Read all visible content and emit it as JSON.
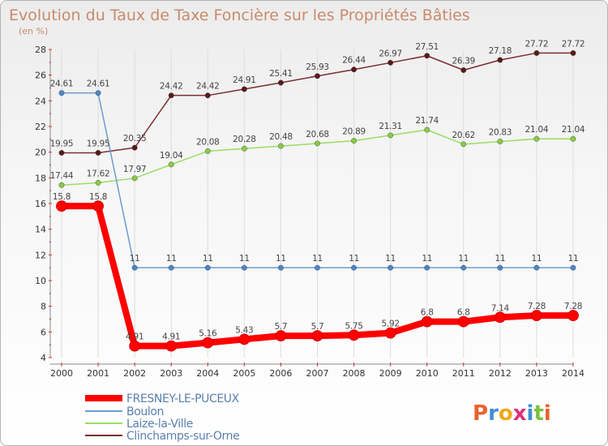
{
  "chart_data": {
    "type": "line",
    "title": "Evolution du Taux de Taxe Foncière sur les Propriétés Bâties",
    "ylabel": "(en %)",
    "x": [
      "2000",
      "2001",
      "2002",
      "2003",
      "2004",
      "2005",
      "2006",
      "2007",
      "2008",
      "2009",
      "2010",
      "2011",
      "2012",
      "2013",
      "2014"
    ],
    "ylim": [
      4,
      28
    ],
    "yticks": [
      4,
      6,
      8,
      10,
      12,
      14,
      16,
      18,
      20,
      22,
      24,
      26,
      28
    ],
    "grid": "vertical",
    "legend_position": "bottom-left",
    "series": [
      {
        "name": "FRESNEY-LE-PUCEUX",
        "color": "#ff0000",
        "marker_color": "#ff0000",
        "values": [
          15.8,
          15.8,
          4.91,
          4.91,
          5.16,
          5.43,
          5.7,
          5.7,
          5.75,
          5.92,
          6.8,
          6.8,
          7.14,
          7.28,
          7.28
        ],
        "labels": [
          "15.8",
          "15.8",
          "4.91",
          "4.91",
          "5.16",
          "5.43",
          "5.7",
          "5.7",
          "5.75",
          "5.92",
          "6.8",
          "6.8",
          "7.14",
          "7.28",
          "7.28"
        ]
      },
      {
        "name": "Boulon",
        "color": "#6a9dd0",
        "marker_color": "#4a88c8",
        "values": [
          24.61,
          24.61,
          11,
          11,
          11,
          11,
          11,
          11,
          11,
          11,
          11,
          11,
          11,
          11,
          11
        ],
        "labels": [
          "24.61",
          "24.61",
          "11",
          "11",
          "11",
          "11",
          "11",
          "11",
          "11",
          "11",
          "11",
          "11",
          "11",
          "11",
          "11"
        ]
      },
      {
        "name": "Laize-la-Ville",
        "color": "#99dd66",
        "marker_color": "#88cc44",
        "values": [
          17.44,
          17.62,
          17.97,
          19.04,
          20.08,
          20.28,
          20.48,
          20.68,
          20.89,
          21.31,
          21.74,
          20.62,
          20.83,
          21.04,
          21.04
        ],
        "labels": [
          "17.44",
          "17.62",
          "17.97",
          "19.04",
          "20.08",
          "20.28",
          "20.48",
          "20.68",
          "20.89",
          "21.31",
          "21.74",
          "20.62",
          "20.83",
          "21.04",
          "21.04"
        ]
      },
      {
        "name": "Clinchamps-sur-Orne",
        "color": "#7a2e2e",
        "marker_color": "#5a1a1a",
        "values": [
          19.95,
          19.95,
          20.35,
          24.42,
          24.42,
          24.91,
          25.41,
          25.93,
          26.44,
          26.97,
          27.51,
          26.39,
          27.18,
          27.72,
          27.72
        ],
        "labels": [
          "19.95",
          "19.95",
          "20.35",
          "24.42",
          "24.42",
          "24.91",
          "25.41",
          "25.93",
          "26.44",
          "26.97",
          "27.51",
          "26.39",
          "27.18",
          "27.72",
          "27.72"
        ]
      }
    ],
    "logo": "Proxiti",
    "logo_colors": [
      "#e8612c",
      "#3e8fd6",
      "#f0a81c",
      "#d9327a",
      "#3e8fd6",
      "#7cc142",
      "#e8612c"
    ]
  }
}
